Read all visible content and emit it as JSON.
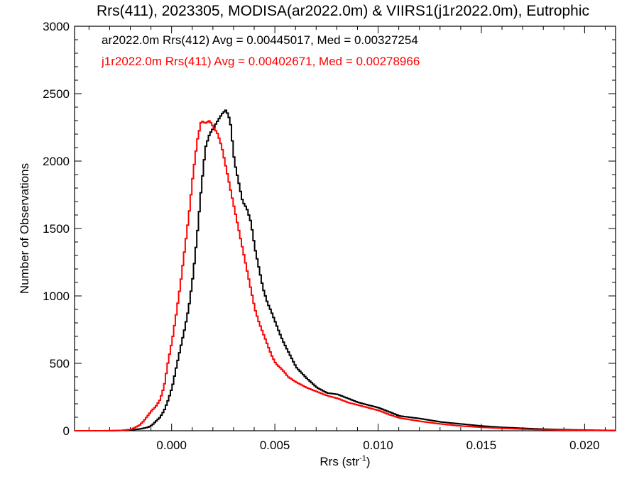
{
  "chart_data": {
    "type": "line",
    "title": "Rrs(411), 2023305, MODISA(ar2022.0m) & VIIRS1(j1r2022.0m), Eutrophic",
    "xlabel": "Rrs (str",
    "xlabel_sup": "-1",
    "xlabel_close": ")",
    "ylabel": "Number of Observations",
    "xlim": [
      -0.0047,
      0.0215
    ],
    "ylim": [
      0,
      3000
    ],
    "xticks": [
      {
        "value": 0.0,
        "label": "0.000"
      },
      {
        "value": 0.005,
        "label": "0.005"
      },
      {
        "value": 0.01,
        "label": "0.010"
      },
      {
        "value": 0.015,
        "label": "0.015"
      },
      {
        "value": 0.02,
        "label": "0.020"
      }
    ],
    "yticks": [
      {
        "value": 0,
        "label": "0"
      },
      {
        "value": 500,
        "label": "500"
      },
      {
        "value": 1000,
        "label": "1000"
      },
      {
        "value": 1500,
        "label": "1500"
      },
      {
        "value": 2000,
        "label": "2000"
      },
      {
        "value": 2500,
        "label": "2500"
      },
      {
        "value": 3000,
        "label": "3000"
      }
    ],
    "grid": false,
    "legend_position": "top-left",
    "series": [
      {
        "name": "ar2022.0m Rrs(412) Avg = 0.00445017, Med = 0.00327254",
        "color": "#000000",
        "x": [
          -0.0047,
          -0.003,
          -0.002,
          -0.0015,
          -0.0012,
          -0.001,
          -0.0008,
          -0.0006,
          -0.0004,
          -0.0002,
          0.0,
          0.0002,
          0.0004,
          0.0006,
          0.0008,
          0.001,
          0.0012,
          0.0014,
          0.0016,
          0.0018,
          0.002,
          0.0022,
          0.0024,
          0.0026,
          0.0028,
          0.003,
          0.0032,
          0.0034,
          0.0036,
          0.0038,
          0.004,
          0.0042,
          0.0044,
          0.0046,
          0.0048,
          0.005,
          0.0052,
          0.0054,
          0.0056,
          0.0058,
          0.006,
          0.0065,
          0.007,
          0.0075,
          0.008,
          0.0085,
          0.009,
          0.0095,
          0.01,
          0.0105,
          0.011,
          0.012,
          0.013,
          0.014,
          0.015,
          0.016,
          0.017,
          0.018,
          0.019,
          0.02,
          0.021,
          0.0215
        ],
        "y": [
          0,
          0,
          5,
          15,
          25,
          40,
          70,
          100,
          150,
          230,
          330,
          480,
          620,
          760,
          920,
          1150,
          1450,
          1800,
          2100,
          2200,
          2250,
          2300,
          2350,
          2380,
          2300,
          2000,
          1850,
          1700,
          1650,
          1550,
          1350,
          1200,
          1050,
          950,
          880,
          800,
          720,
          650,
          590,
          530,
          470,
          390,
          320,
          280,
          270,
          240,
          210,
          190,
          170,
          140,
          110,
          90,
          65,
          50,
          35,
          25,
          18,
          12,
          8,
          5,
          3,
          2
        ]
      },
      {
        "name": "j1r2022.0m Rrs(411) Avg = 0.00402671, Med = 0.00278966",
        "color": "#ff0000",
        "x": [
          -0.0047,
          -0.0035,
          -0.0025,
          -0.002,
          -0.0016,
          -0.0014,
          -0.0012,
          -0.001,
          -0.0008,
          -0.0006,
          -0.0004,
          -0.0002,
          0.0,
          0.0002,
          0.0004,
          0.0006,
          0.0008,
          0.001,
          0.0012,
          0.0014,
          0.0016,
          0.0018,
          0.002,
          0.0022,
          0.0024,
          0.0026,
          0.0028,
          0.003,
          0.0032,
          0.0034,
          0.0036,
          0.0038,
          0.004,
          0.0042,
          0.0044,
          0.0046,
          0.0048,
          0.005,
          0.0052,
          0.0054,
          0.0056,
          0.006,
          0.0065,
          0.007,
          0.0075,
          0.008,
          0.0085,
          0.009,
          0.0095,
          0.01,
          0.0105,
          0.011,
          0.012,
          0.013,
          0.014,
          0.015,
          0.016,
          0.017,
          0.018,
          0.019,
          0.02,
          0.021,
          0.0215
        ],
        "y": [
          0,
          0,
          2,
          10,
          40,
          70,
          110,
          150,
          180,
          230,
          330,
          520,
          680,
          880,
          1100,
          1350,
          1600,
          1900,
          2150,
          2300,
          2280,
          2300,
          2250,
          2200,
          2100,
          1950,
          1800,
          1650,
          1500,
          1350,
          1200,
          1050,
          900,
          800,
          720,
          640,
          560,
          500,
          470,
          440,
          400,
          360,
          320,
          290,
          260,
          240,
          210,
          190,
          170,
          150,
          120,
          95,
          70,
          50,
          35,
          25,
          18,
          12,
          8,
          5,
          3,
          2,
          1
        ]
      }
    ]
  }
}
